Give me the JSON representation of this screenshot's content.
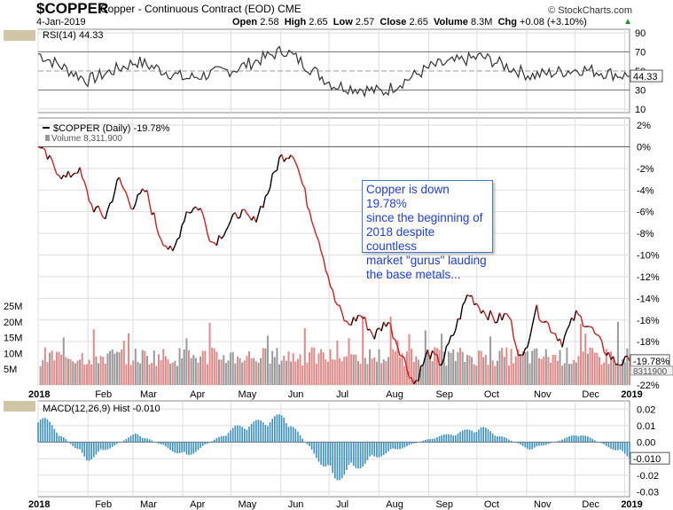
{
  "header": {
    "ticker": "$COPPER",
    "description": "Copper - Continuous Contract (EOD)",
    "exchange": "CME",
    "date": "4-Jan-2019",
    "open_label": "Open",
    "open": "2.58",
    "high_label": "High",
    "high": "2.65",
    "low_label": "Low",
    "low": "2.57",
    "close_label": "Close",
    "close": "2.65",
    "volume_label": "Volume",
    "volume": "8.3M",
    "chg_label": "Chg",
    "chg": "+0.08 (+3.10%)",
    "copyright": "© StockCharts.com"
  },
  "rsi_panel": {
    "label": "RSI(14) 44.33",
    "value_badge": "44.33",
    "ticks": [
      "90",
      "70",
      "50",
      "30",
      "10"
    ]
  },
  "price_panel": {
    "legend": "$COPPER (Daily) -19.78%",
    "volume_legend": "Volume 8,311,900",
    "price_badge": "-19.78%",
    "volume_badge": "8311900",
    "pct_ticks": [
      "2%",
      "0%",
      "-2%",
      "-4%",
      "-6%",
      "-8%",
      "-10%",
      "-12%",
      "-14%",
      "-16%",
      "-18%",
      "-22%"
    ],
    "volume_ticks": [
      "25M",
      "20M",
      "15M",
      "10M",
      "5M"
    ]
  },
  "macd_panel": {
    "label": "MACD(12,26,9) Hist -0.010",
    "value_badge": "-0.010",
    "ticks": [
      "0.02",
      "0.01",
      "0.00",
      "-0.01",
      "-0.02",
      "-0.03"
    ]
  },
  "months": [
    "2018",
    "Feb",
    "Mar",
    "Apr",
    "May",
    "Jun",
    "Jul",
    "Aug",
    "Sep",
    "Oct",
    "Nov",
    "Dec",
    "2019"
  ],
  "annotation": {
    "line1": "Copper is down 19.78%",
    "line2": "since the beginning of",
    "line3": "2018 despite countless",
    "line4": "market \"gurus\" lauding",
    "line5": "the base metals..."
  },
  "colors": {
    "up": "#000000",
    "down": "#cc1f1f",
    "macd_hist": "#3a8fc0",
    "volume_up": "#9a9a9a",
    "volume_down": "#e08a8a",
    "grid": "#dddddd",
    "rsi_line": "#333333"
  },
  "chart_data": [
    {
      "type": "line",
      "title": "RSI(14) 44.33",
      "ylim": [
        10,
        90
      ],
      "x": [
        "2018-01",
        "2018-02",
        "2018-03",
        "2018-04",
        "2018-05",
        "2018-06",
        "2018-07",
        "2018-08",
        "2018-09",
        "2018-10",
        "2018-11",
        "2018-12",
        "2019-01"
      ],
      "series": [
        {
          "values": [
            68,
            40,
            60,
            42,
            52,
            72,
            35,
            28,
            55,
            65,
            45,
            52,
            44.33
          ]
        }
      ]
    },
    {
      "type": "line",
      "title": "$COPPER (Daily) -19.78%",
      "ylabel": "",
      "ylim": [
        -22,
        2
      ],
      "x": [
        "2018-01-02",
        "2018-01-10",
        "2018-01-18",
        "2018-01-26",
        "2018-02-05",
        "2018-02-12",
        "2018-02-20",
        "2018-02-28",
        "2018-03-08",
        "2018-03-16",
        "2018-03-26",
        "2018-04-03",
        "2018-04-11",
        "2018-04-19",
        "2018-04-27",
        "2018-05-07",
        "2018-05-15",
        "2018-05-23",
        "2018-06-01",
        "2018-06-07",
        "2018-06-15",
        "2018-06-25",
        "2018-07-03",
        "2018-07-11",
        "2018-07-19",
        "2018-07-27",
        "2018-08-06",
        "2018-08-14",
        "2018-08-22",
        "2018-08-30",
        "2018-09-10",
        "2018-09-18",
        "2018-09-26",
        "2018-10-04",
        "2018-10-12",
        "2018-10-22",
        "2018-10-30",
        "2018-11-07",
        "2018-11-15",
        "2018-11-23",
        "2018-12-03",
        "2018-12-11",
        "2018-12-19",
        "2018-12-27",
        "2019-01-04"
      ],
      "values": [
        0,
        -1.5,
        -3,
        -2,
        -5.5,
        -6.5,
        -3,
        -5.5,
        -4,
        -8,
        -10,
        -6,
        -5.5,
        -9,
        -7.5,
        -6,
        -7,
        -4.5,
        -1,
        -0.5,
        -5,
        -9,
        -14,
        -16.5,
        -15.5,
        -17.5,
        -16,
        -19,
        -22,
        -19,
        -20,
        -17,
        -13.5,
        -15,
        -16,
        -15.5,
        -20,
        -15,
        -16.5,
        -18,
        -15.5,
        -16.5,
        -18.5,
        -20,
        -19.78
      ]
    },
    {
      "type": "bar",
      "title": "Volume 8,311,900",
      "ylim": [
        0,
        25
      ],
      "categories": [
        "Jan",
        "Feb",
        "Mar",
        "Apr",
        "May",
        "Jun",
        "Jul",
        "Aug",
        "Sep",
        "Oct",
        "Nov",
        "Dec"
      ],
      "values": [
        12,
        11,
        10,
        10,
        9,
        13,
        12,
        9,
        9,
        10,
        10,
        9
      ]
    },
    {
      "type": "bar",
      "title": "MACD(12,26,9) Hist -0.010",
      "ylim": [
        -0.03,
        0.025
      ],
      "categories": [
        "Jan",
        "Feb",
        "Mar",
        "Apr",
        "May",
        "Jun",
        "Jul",
        "Aug",
        "Sep",
        "Oct",
        "Nov",
        "Dec",
        "2019"
      ],
      "values": [
        0.02,
        -0.012,
        0.006,
        -0.01,
        0.01,
        0.018,
        -0.025,
        -0.008,
        0.003,
        0.01,
        -0.005,
        0.006,
        -0.01
      ]
    }
  ]
}
